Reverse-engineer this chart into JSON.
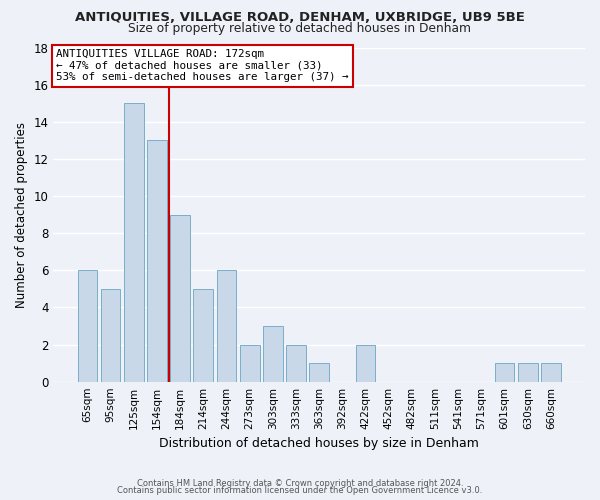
{
  "title": "ANTIQUITIES, VILLAGE ROAD, DENHAM, UXBRIDGE, UB9 5BE",
  "subtitle": "Size of property relative to detached houses in Denham",
  "xlabel": "Distribution of detached houses by size in Denham",
  "ylabel": "Number of detached properties",
  "bar_color": "#c8d8e8",
  "bar_edge_color": "#7aaec8",
  "background_color": "#eef2f8",
  "grid_color": "#ffffff",
  "categories": [
    "65sqm",
    "95sqm",
    "125sqm",
    "154sqm",
    "184sqm",
    "214sqm",
    "244sqm",
    "273sqm",
    "303sqm",
    "333sqm",
    "363sqm",
    "392sqm",
    "422sqm",
    "452sqm",
    "482sqm",
    "511sqm",
    "541sqm",
    "571sqm",
    "601sqm",
    "630sqm",
    "660sqm"
  ],
  "values": [
    6,
    5,
    15,
    13,
    9,
    5,
    6,
    2,
    3,
    2,
    1,
    0,
    2,
    0,
    0,
    0,
    0,
    0,
    1,
    1,
    1
  ],
  "ylim": [
    0,
    18
  ],
  "yticks": [
    0,
    2,
    4,
    6,
    8,
    10,
    12,
    14,
    16,
    18
  ],
  "vline_x": 3.5,
  "vline_color": "#cc0000",
  "annotation_title": "ANTIQUITIES VILLAGE ROAD: 172sqm",
  "annotation_line1": "← 47% of detached houses are smaller (33)",
  "annotation_line2": "53% of semi-detached houses are larger (37) →",
  "annotation_box_facecolor": "#ffffff",
  "annotation_box_edgecolor": "#cc0000",
  "footer1": "Contains HM Land Registry data © Crown copyright and database right 2024.",
  "footer2": "Contains public sector information licensed under the Open Government Licence v3.0."
}
